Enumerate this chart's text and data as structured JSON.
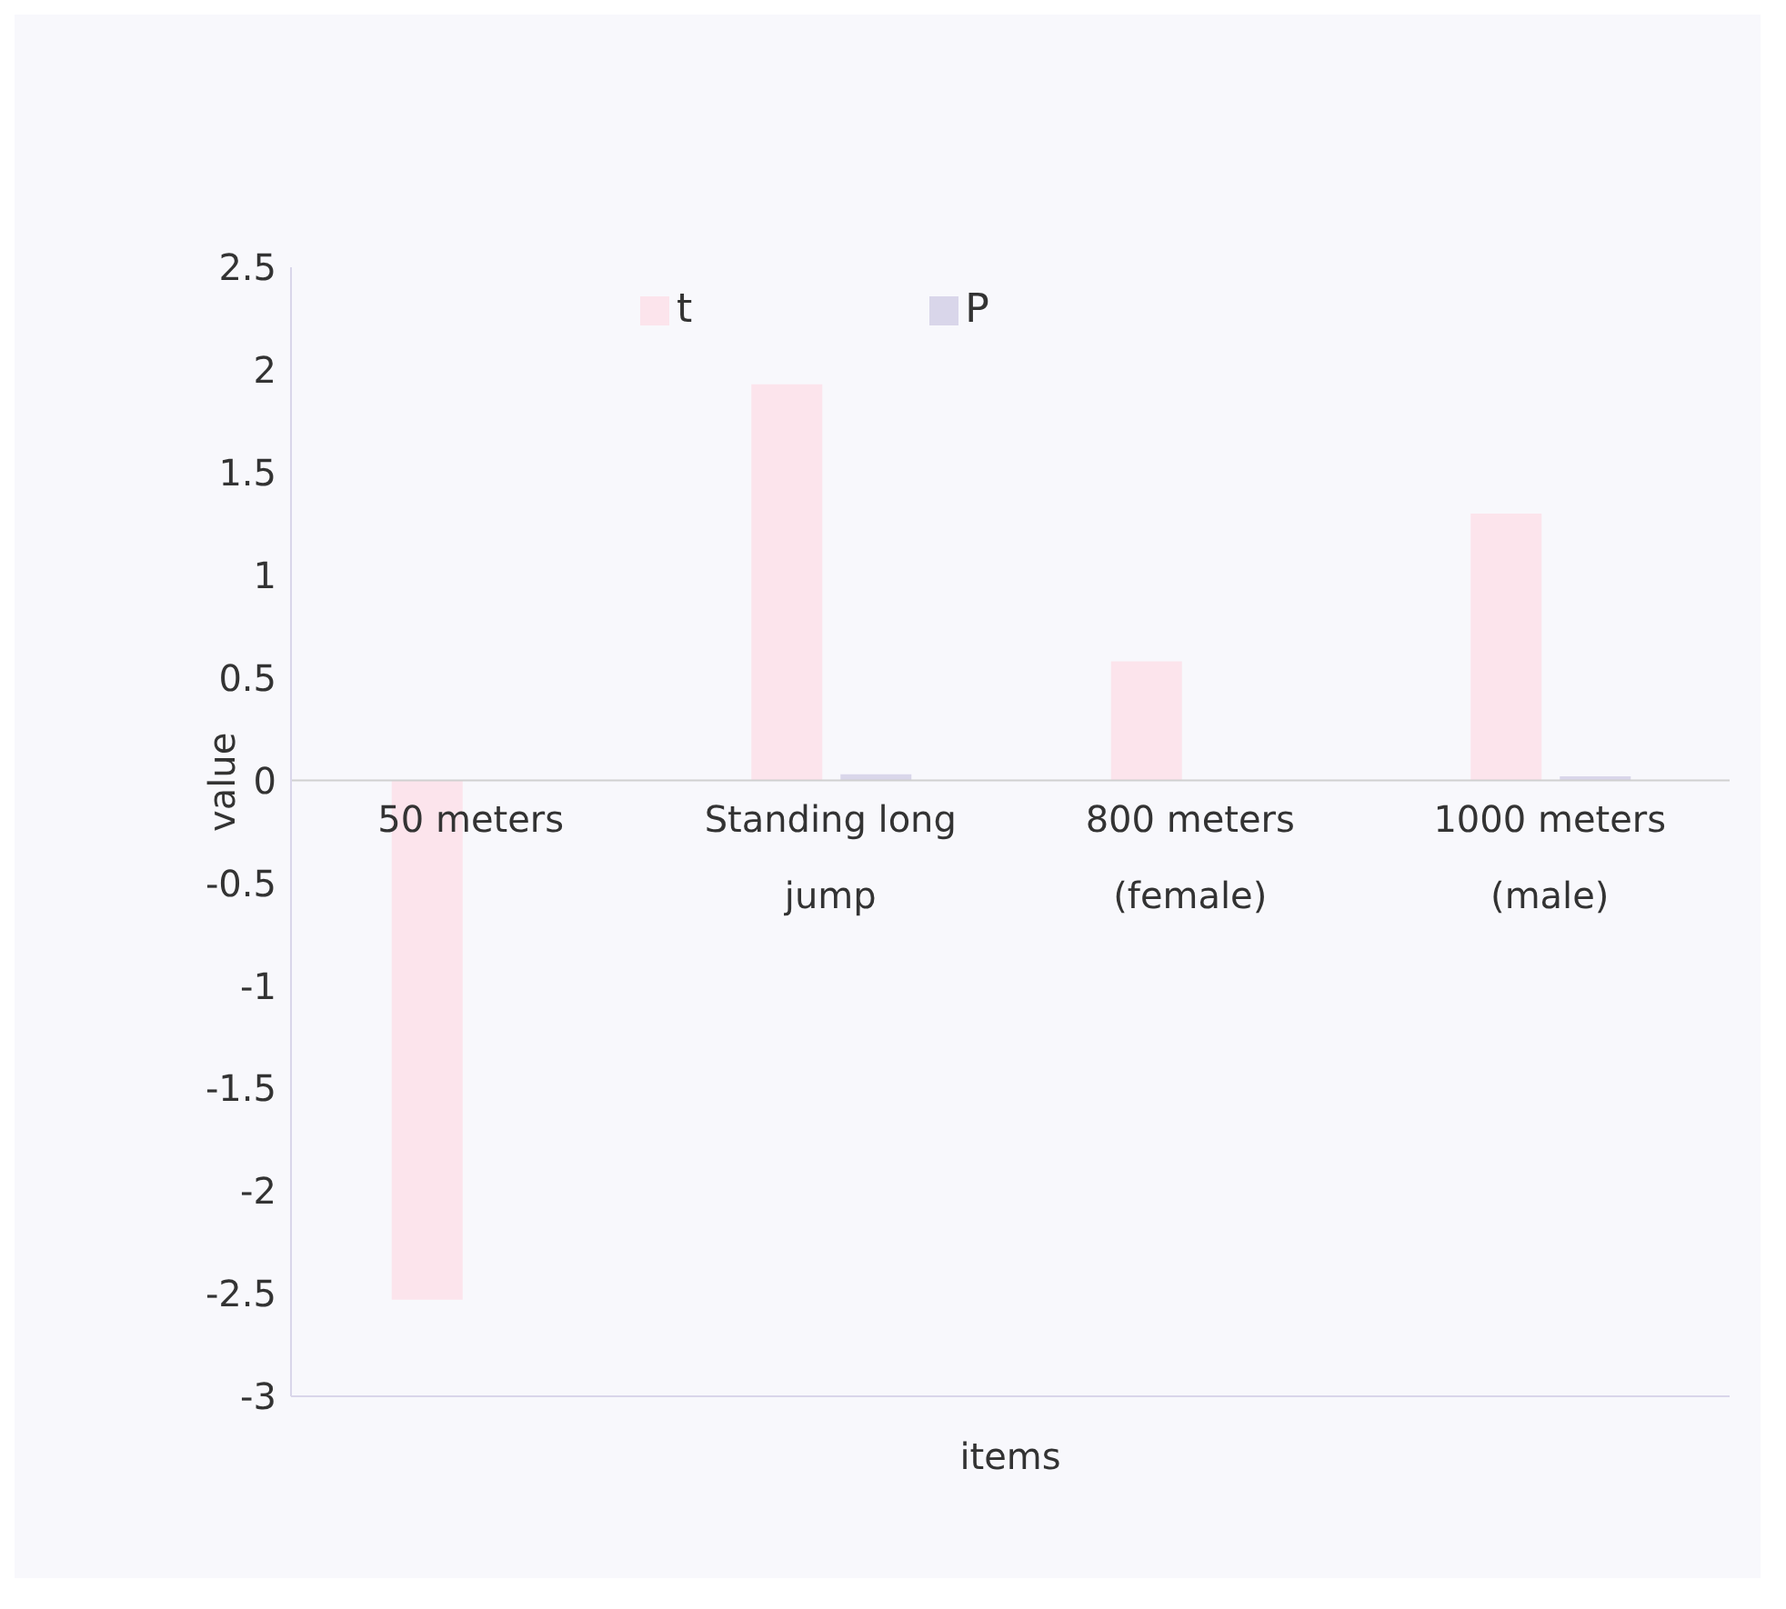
{
  "chart_data": {
    "type": "bar",
    "xlabel": "items",
    "ylabel": "value",
    "categories": [
      "50 meters",
      "Standing long jump",
      "800 meters (female)",
      "1000 meters (male)"
    ],
    "series": [
      {
        "name": "t",
        "color": "#fce4ec",
        "values": [
          -2.53,
          1.93,
          0.58,
          1.3
        ]
      },
      {
        "name": "P",
        "color": "#d9d6ea",
        "values": [
          0,
          0.03,
          0,
          0.02
        ]
      }
    ],
    "ylim": [
      -3,
      2.5
    ],
    "yticks": [
      -3,
      -2.5,
      -2,
      -1.5,
      -1,
      -0.5,
      0,
      0.5,
      1,
      1.5,
      2,
      2.5
    ],
    "grid": false,
    "legend": "top"
  }
}
